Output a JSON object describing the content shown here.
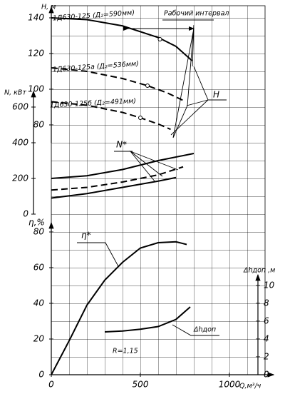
{
  "chart_data": [
    {
      "type": "line",
      "y_label": "H, м",
      "annotation": "Рабочий интервал",
      "curve_label": "H",
      "xlim": [
        0,
        1200
      ],
      "ylim": [
        80,
        140
      ],
      "yticks": [
        80,
        100,
        120,
        140
      ],
      "series": [
        {
          "name": "1Д630-125 (Д₂=590мм)",
          "color": "#000000",
          "line_style": "solid",
          "x": [
            0,
            200,
            400,
            600,
            700,
            790
          ],
          "values": [
            140,
            139,
            135.5,
            129,
            124,
            116
          ],
          "point": {
            "x": 610,
            "value": 128
          }
        },
        {
          "name": "1Д630-125а (Д₂=536мм)",
          "color": "#000000",
          "line_style": "dashed",
          "x": [
            0,
            200,
            400,
            540,
            650,
            745
          ],
          "values": [
            112,
            110,
            106,
            102,
            98,
            93.5
          ],
          "point": {
            "x": 540,
            "value": 102
          }
        },
        {
          "name": "1Д630-125б (Д₂=491мм)",
          "color": "#000000",
          "line_style": "dashed",
          "x": [
            0,
            200,
            400,
            500,
            600,
            670
          ],
          "values": [
            93,
            91,
            87,
            84,
            80.5,
            77.5
          ],
          "point": {
            "x": 500,
            "value": 84
          }
        }
      ]
    },
    {
      "type": "line",
      "y_label": "N, кВт",
      "curve_label": "N*",
      "xlim": [
        0,
        1200
      ],
      "ylim": [
        0,
        600
      ],
      "yticks": [
        0,
        200,
        400,
        600
      ],
      "series": [
        {
          "color": "#000000",
          "line_style": "solid",
          "x": [
            0,
            200,
            400,
            600,
            800
          ],
          "values": [
            200,
            215,
            250,
            300,
            340
          ]
        },
        {
          "color": "#000000",
          "line_style": "dashed",
          "x": [
            0,
            200,
            400,
            600,
            740
          ],
          "values": [
            135,
            150,
            180,
            220,
            265
          ]
        },
        {
          "color": "#000000",
          "line_style": "solid",
          "x": [
            0,
            200,
            400,
            600,
            700
          ],
          "values": [
            90,
            115,
            150,
            185,
            205
          ]
        }
      ]
    },
    {
      "type": "line",
      "y_label": "η,%",
      "x_label": "Q,м³/ч",
      "curve_label": "η*",
      "xlim": [
        0,
        1200
      ],
      "ylim": [
        0,
        80
      ],
      "yticks": [
        0,
        20,
        40,
        60,
        80
      ],
      "xticks": [
        0,
        500,
        1000
      ],
      "series": [
        {
          "color": "#000000",
          "line_style": "solid",
          "x": [
            0,
            100,
            200,
            300,
            400,
            500,
            600,
            700,
            760
          ],
          "values": [
            0,
            19,
            39,
            53,
            63,
            71,
            74,
            74.5,
            73
          ]
        }
      ]
    },
    {
      "type": "line",
      "y_label": "Δhдоп ,м",
      "curve_label": "Δhдоп",
      "annotation": "R=1,15",
      "xlim": [
        0,
        1200
      ],
      "ylim": [
        0,
        10
      ],
      "yticks": [
        0,
        2,
        4,
        6,
        8,
        10
      ],
      "series": [
        {
          "color": "#000000",
          "line_style": "solid",
          "x": [
            300,
            400,
            500,
            600,
            700,
            780
          ],
          "values": [
            4.8,
            4.9,
            5.1,
            5.4,
            6.2,
            7.6
          ]
        }
      ]
    }
  ]
}
